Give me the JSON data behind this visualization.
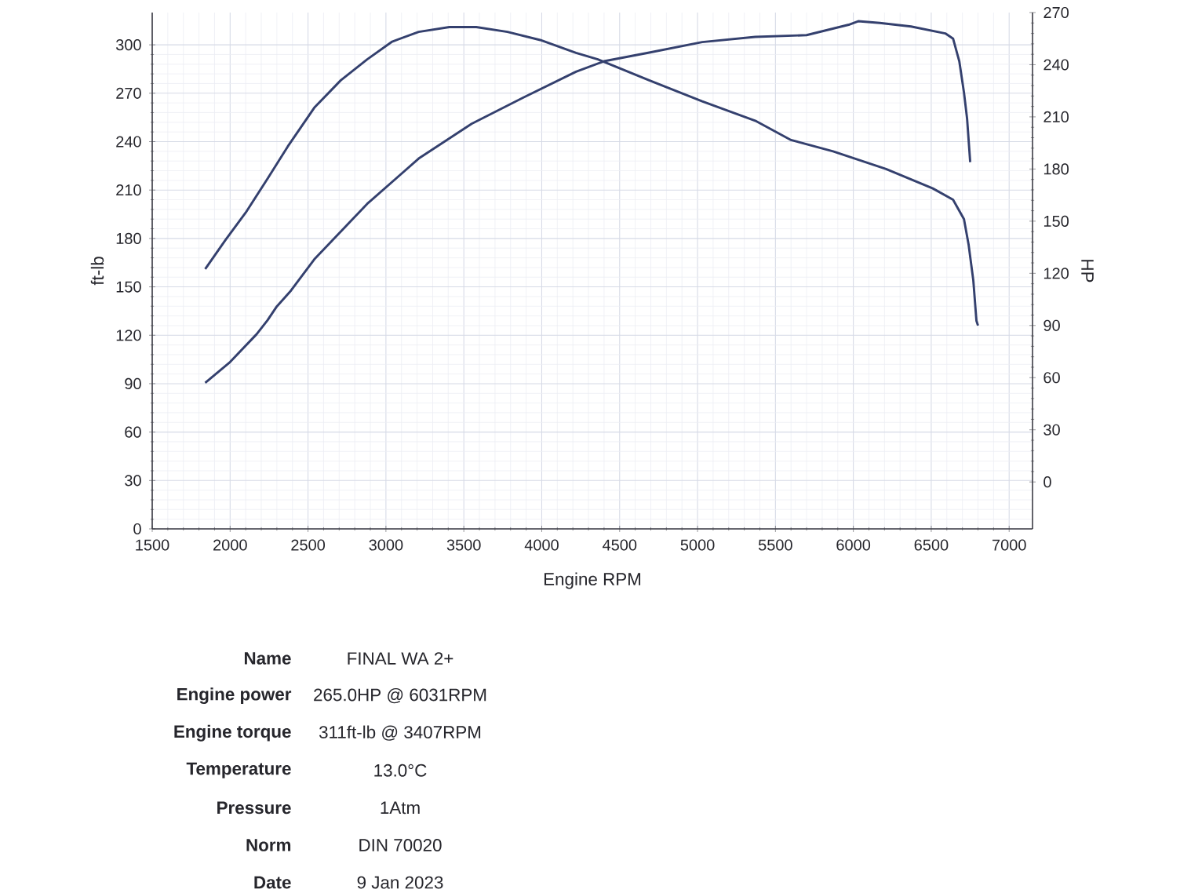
{
  "chart_data": {
    "type": "line",
    "xlabel": "Engine RPM",
    "ylabel": "ft-lb",
    "y2label": "HP",
    "series": [
      {
        "color": "#34406e",
        "x": [
          1840,
          1970,
          2100,
          2240,
          2370,
          2540,
          2710,
          2880,
          3040,
          3210,
          3407,
          3580,
          3780,
          3990,
          4220,
          4360,
          4690,
          5030,
          5370,
          5600,
          5870,
          6210,
          6510,
          6640,
          6710,
          6740,
          6770,
          6790,
          6800
        ],
        "values": [
          161,
          179,
          196,
          217,
          237,
          261,
          278,
          291,
          302,
          308,
          311,
          311,
          308,
          303,
          295,
          291,
          278,
          265,
          253,
          241,
          234,
          223,
          211,
          204,
          192,
          176,
          154,
          129,
          126
        ]
      },
      {
        "color": "#34406e",
        "axis": "y2",
        "x": [
          1840,
          2000,
          2170,
          2240,
          2300,
          2390,
          2540,
          2880,
          3210,
          3550,
          3880,
          4220,
          4400,
          4690,
          5030,
          5370,
          5700,
          5970,
          6031,
          6170,
          6370,
          6590,
          6640,
          6680,
          6710,
          6730,
          6750
        ],
        "values": [
          57,
          69,
          85,
          93,
          101,
          110,
          128,
          160,
          186,
          206,
          221,
          236,
          242,
          247,
          253,
          256,
          257,
          263,
          265,
          264,
          262,
          258,
          255,
          242,
          224,
          209,
          184
        ]
      }
    ],
    "xlim": [
      1500,
      7150
    ],
    "xticks": [
      1500,
      2000,
      2500,
      3000,
      3500,
      4000,
      4500,
      5000,
      5500,
      6000,
      6500,
      7000
    ],
    "ylim": [
      0,
      320
    ],
    "yticks": [
      0,
      30,
      60,
      90,
      120,
      150,
      180,
      210,
      240,
      270,
      300
    ],
    "y2lim": [
      -27,
      270
    ],
    "y2ticks": [
      0,
      30,
      60,
      90,
      120,
      150,
      180,
      210,
      240,
      270
    ],
    "grid": true,
    "marker": "none",
    "line_style": "solid",
    "annotations": [
      "Name",
      "FINAL WA 2+",
      "Engine power",
      "265.0HP @ 6031RPM",
      "Engine torque",
      "311ft-lb @ 3407RPM",
      "Temperature",
      "13.0°C",
      "Pressure",
      "1Atm",
      "Norm",
      "DIN 70020",
      "Date",
      "9 Jan 2023"
    ]
  }
}
